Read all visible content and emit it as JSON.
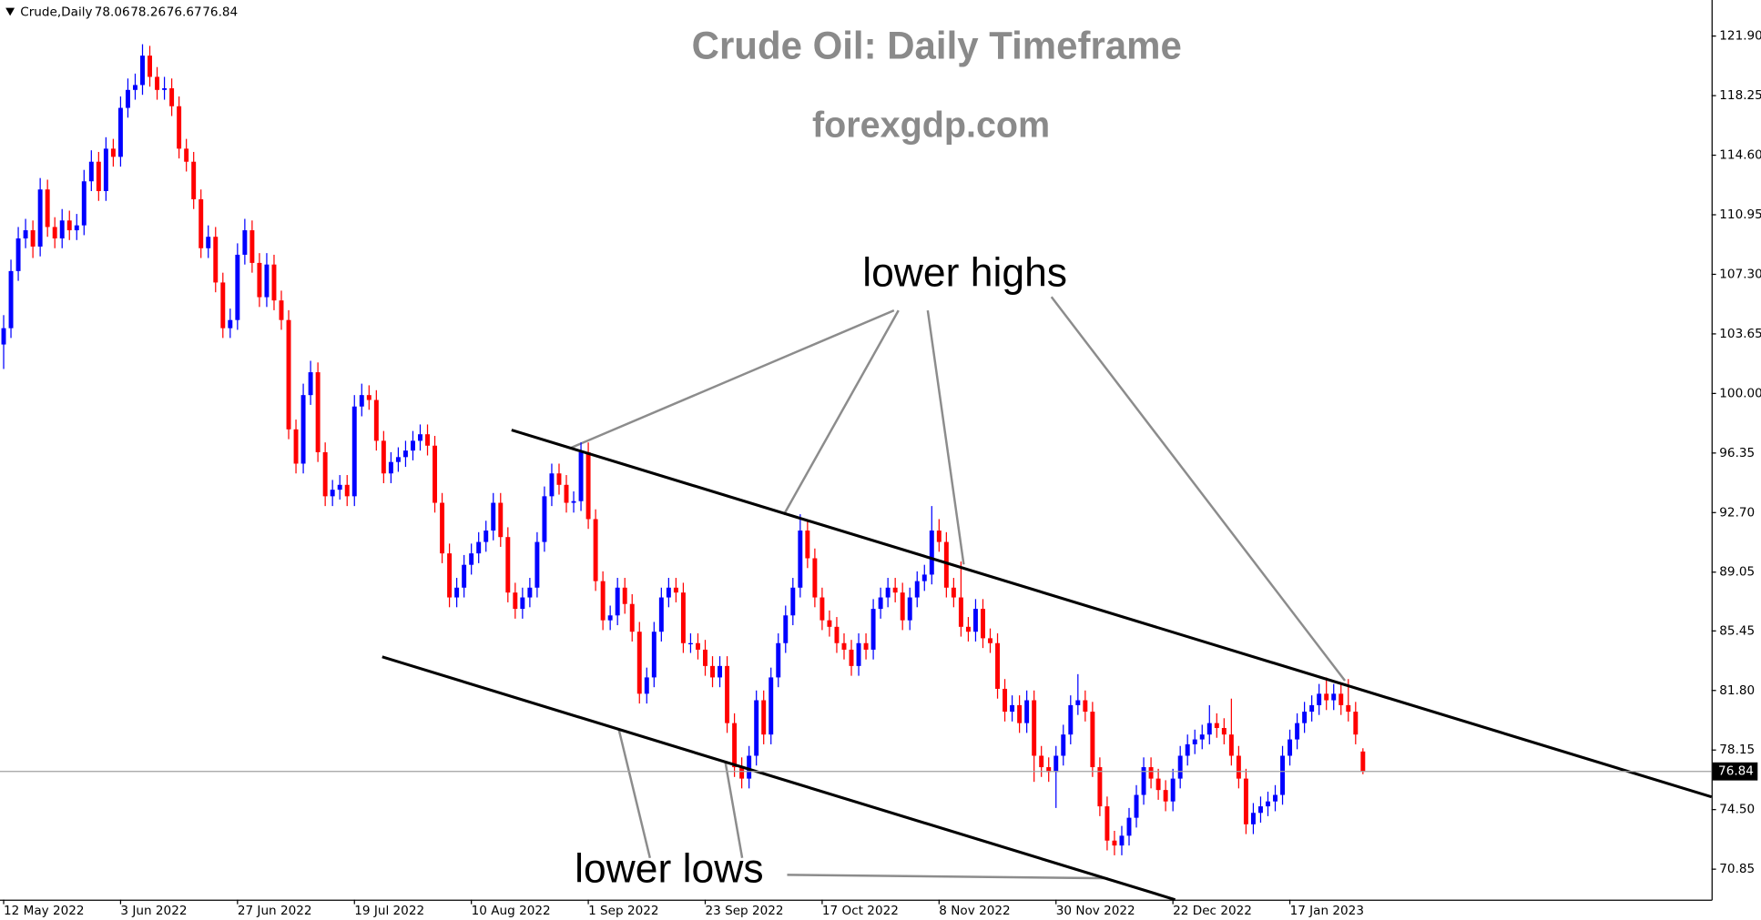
{
  "chart_data": {
    "type": "candlestick",
    "symbol": "Crude,Daily",
    "title": "Crude Oil: Daily Timeframe",
    "subtitle": "forexgdp.com",
    "annotations": [
      "lower highs",
      "lower lows"
    ],
    "up_color": "#0000ff",
    "down_color": "#ff0000",
    "price_line_color": "#a0a0a0",
    "ylim": [
      68.98,
      124.11
    ],
    "yticks": [
      {
        "value": 121.9,
        "label": "121.90"
      },
      {
        "value": 118.25,
        "label": "118.25"
      },
      {
        "value": 114.6,
        "label": "114.60"
      },
      {
        "value": 110.95,
        "label": "110.95"
      },
      {
        "value": 107.3,
        "label": "107.30"
      },
      {
        "value": 103.65,
        "label": "103.65"
      },
      {
        "value": 100,
        "label": "100.00"
      },
      {
        "value": 96.35,
        "label": "96.35"
      },
      {
        "value": 92.7,
        "label": "92.70"
      },
      {
        "value": 89.05,
        "label": "89.05"
      },
      {
        "value": 85.45,
        "label": "85.45"
      },
      {
        "value": 81.8,
        "label": "81.80"
      },
      {
        "value": 78.15,
        "label": "78.15"
      },
      {
        "value": 74.5,
        "label": "74.50"
      },
      {
        "value": 70.85,
        "label": "70.85"
      }
    ],
    "xlim": [
      -0.5,
      233.7
    ],
    "categories": [
      "12 May 2022",
      null,
      null,
      null,
      null,
      null,
      null,
      null,
      null,
      null,
      null,
      null,
      null,
      null,
      null,
      null,
      "3 Jun 2022",
      null,
      null,
      null,
      null,
      null,
      null,
      null,
      null,
      null,
      null,
      null,
      null,
      null,
      null,
      null,
      "27 Jun 2022",
      null,
      null,
      null,
      null,
      null,
      null,
      null,
      null,
      null,
      null,
      null,
      null,
      null,
      null,
      null,
      "19 Jul 2022",
      null,
      null,
      null,
      null,
      null,
      null,
      null,
      null,
      null,
      null,
      null,
      null,
      null,
      null,
      null,
      "10 Aug 2022",
      null,
      null,
      null,
      null,
      null,
      null,
      null,
      null,
      null,
      null,
      null,
      null,
      null,
      null,
      null,
      "1 Sep 2022",
      null,
      null,
      null,
      null,
      null,
      null,
      null,
      null,
      null,
      null,
      null,
      null,
      null,
      null,
      null,
      "23 Sep 2022",
      null,
      null,
      null,
      null,
      null,
      null,
      null,
      null,
      null,
      null,
      null,
      null,
      null,
      null,
      null,
      "17 Oct 2022",
      null,
      null,
      null,
      null,
      null,
      null,
      null,
      null,
      null,
      null,
      null,
      null,
      null,
      null,
      null,
      "8 Nov 2022",
      null,
      null,
      null,
      null,
      null,
      null,
      null,
      null,
      null,
      null,
      null,
      null,
      null,
      null,
      null,
      "30 Nov 2022",
      null,
      null,
      null,
      null,
      null,
      null,
      null,
      null,
      null,
      null,
      null,
      null,
      null,
      null,
      null,
      "22 Dec 2022",
      null,
      null,
      null,
      null,
      null,
      null,
      null,
      null,
      null,
      null,
      null,
      null,
      null,
      null,
      null,
      "17 Jan 2023",
      null,
      null,
      null,
      null,
      null,
      null,
      null,
      null,
      null,
      null
    ],
    "candles": [
      [
        103.0,
        104.8,
        101.5,
        104.0
      ],
      [
        104.0,
        108.2,
        103.4,
        107.5
      ],
      [
        107.5,
        110.2,
        106.9,
        109.5
      ],
      [
        109.5,
        110.7,
        108.9,
        110.0
      ],
      [
        110.0,
        110.6,
        108.3,
        109.0
      ],
      [
        109.0,
        113.2,
        108.4,
        112.5
      ],
      [
        112.5,
        113.1,
        109.6,
        110.2
      ],
      [
        110.2,
        110.8,
        108.9,
        109.5
      ],
      [
        109.5,
        111.3,
        108.9,
        110.6
      ],
      [
        110.6,
        111.2,
        109.4,
        110.0
      ],
      [
        110.0,
        111.0,
        109.4,
        110.3
      ],
      [
        110.3,
        113.7,
        109.7,
        113.0
      ],
      [
        113.0,
        114.9,
        112.4,
        114.2
      ],
      [
        114.2,
        114.8,
        111.8,
        112.4
      ],
      [
        112.4,
        115.7,
        111.8,
        115.0
      ],
      [
        115.0,
        115.6,
        113.9,
        114.5
      ],
      [
        114.5,
        118.2,
        113.9,
        117.5
      ],
      [
        117.5,
        119.3,
        116.9,
        118.6
      ],
      [
        118.6,
        119.6,
        118.0,
        118.9
      ],
      [
        118.9,
        121.4,
        118.3,
        120.7
      ],
      [
        120.7,
        121.3,
        118.8,
        119.4
      ],
      [
        119.4,
        120.0,
        118.0,
        118.6
      ],
      [
        118.6,
        119.4,
        118.0,
        118.7
      ],
      [
        118.7,
        119.3,
        117.0,
        117.6
      ],
      [
        117.6,
        118.2,
        114.4,
        115.0
      ],
      [
        115.0,
        115.6,
        113.6,
        114.2
      ],
      [
        114.2,
        114.8,
        111.3,
        111.9
      ],
      [
        111.9,
        112.5,
        108.3,
        108.9
      ],
      [
        108.9,
        110.3,
        108.3,
        109.6
      ],
      [
        109.6,
        110.2,
        106.2,
        106.8
      ],
      [
        106.8,
        107.4,
        103.4,
        104.0
      ],
      [
        104.0,
        105.2,
        103.4,
        104.5
      ],
      [
        104.5,
        109.2,
        103.9,
        108.5
      ],
      [
        108.5,
        110.7,
        107.9,
        110.0
      ],
      [
        110.0,
        110.6,
        107.4,
        108.0
      ],
      [
        108.0,
        108.6,
        105.3,
        105.9
      ],
      [
        105.9,
        108.6,
        105.3,
        107.9
      ],
      [
        107.9,
        108.5,
        105.1,
        105.7
      ],
      [
        105.7,
        106.3,
        103.9,
        104.5
      ],
      [
        104.5,
        105.1,
        97.2,
        97.8
      ],
      [
        97.8,
        98.4,
        95.1,
        95.7
      ],
      [
        95.7,
        100.6,
        95.1,
        99.9
      ],
      [
        99.9,
        102.0,
        99.3,
        101.3
      ],
      [
        101.3,
        101.9,
        95.8,
        96.4
      ],
      [
        96.4,
        97.0,
        93.1,
        93.7
      ],
      [
        93.7,
        94.7,
        93.1,
        94.1
      ],
      [
        94.1,
        95.0,
        93.5,
        94.4
      ],
      [
        94.4,
        95.0,
        93.1,
        93.7
      ],
      [
        93.7,
        99.9,
        93.1,
        99.2
      ],
      [
        99.2,
        100.6,
        98.6,
        99.9
      ],
      [
        99.9,
        100.5,
        99.0,
        99.6
      ],
      [
        99.6,
        100.2,
        96.5,
        97.1
      ],
      [
        97.1,
        97.7,
        94.5,
        95.1
      ],
      [
        95.1,
        96.4,
        94.5,
        95.8
      ],
      [
        95.8,
        96.7,
        95.2,
        96.1
      ],
      [
        96.1,
        97.1,
        95.5,
        96.5
      ],
      [
        96.5,
        97.7,
        95.9,
        97.1
      ],
      [
        97.1,
        98.1,
        96.5,
        97.5
      ],
      [
        97.5,
        98.1,
        96.2,
        96.8
      ],
      [
        96.8,
        97.4,
        92.7,
        93.3
      ],
      [
        93.3,
        93.9,
        89.6,
        90.2
      ],
      [
        90.2,
        90.8,
        86.9,
        87.5
      ],
      [
        87.5,
        88.7,
        86.9,
        88.1
      ],
      [
        88.1,
        90.1,
        87.5,
        89.5
      ],
      [
        89.5,
        90.8,
        88.9,
        90.2
      ],
      [
        90.2,
        91.5,
        89.6,
        90.9
      ],
      [
        90.9,
        92.2,
        90.3,
        91.6
      ],
      [
        91.6,
        93.9,
        91.0,
        93.3
      ],
      [
        93.3,
        93.9,
        90.6,
        91.2
      ],
      [
        91.2,
        91.8,
        87.2,
        87.8
      ],
      [
        87.8,
        88.4,
        86.2,
        86.8
      ],
      [
        86.8,
        88.1,
        86.2,
        87.5
      ],
      [
        87.5,
        88.7,
        86.9,
        88.1
      ],
      [
        88.1,
        91.5,
        87.5,
        90.9
      ],
      [
        90.9,
        94.3,
        90.3,
        93.7
      ],
      [
        93.7,
        95.7,
        93.1,
        95.1
      ],
      [
        95.1,
        95.7,
        93.8,
        94.4
      ],
      [
        94.4,
        95.0,
        92.7,
        93.3
      ],
      [
        93.3,
        94.0,
        92.7,
        93.4
      ],
      [
        93.4,
        97.0,
        92.8,
        96.4
      ],
      [
        96.4,
        97.0,
        91.7,
        92.3
      ],
      [
        92.3,
        92.9,
        87.9,
        88.5
      ],
      [
        88.5,
        89.1,
        85.5,
        86.1
      ],
      [
        86.1,
        87.0,
        85.5,
        86.4
      ],
      [
        86.4,
        88.7,
        85.8,
        88.1
      ],
      [
        88.1,
        88.7,
        86.5,
        87.1
      ],
      [
        87.1,
        87.7,
        84.8,
        85.4
      ],
      [
        85.4,
        86.0,
        81.0,
        81.6
      ],
      [
        81.6,
        83.2,
        81.0,
        82.6
      ],
      [
        82.6,
        86.0,
        82.0,
        85.4
      ],
      [
        85.4,
        88.1,
        84.8,
        87.5
      ],
      [
        87.5,
        88.7,
        86.9,
        88.1
      ],
      [
        88.1,
        88.7,
        87.2,
        87.8
      ],
      [
        87.8,
        88.4,
        84.1,
        84.7
      ],
      [
        84.7,
        85.3,
        84.1,
        84.7
      ],
      [
        84.7,
        85.3,
        83.7,
        84.3
      ],
      [
        84.3,
        84.9,
        82.7,
        83.3
      ],
      [
        83.3,
        83.9,
        82.0,
        82.6
      ],
      [
        82.6,
        83.9,
        82.0,
        83.3
      ],
      [
        83.3,
        83.9,
        79.2,
        79.8
      ],
      [
        79.8,
        80.4,
        76.5,
        77.1
      ],
      [
        77.1,
        77.7,
        75.8,
        76.4
      ],
      [
        76.4,
        78.4,
        75.8,
        77.8
      ],
      [
        77.8,
        81.8,
        77.2,
        81.2
      ],
      [
        81.2,
        81.8,
        78.5,
        79.1
      ],
      [
        79.1,
        83.2,
        78.5,
        82.6
      ],
      [
        82.6,
        85.3,
        82.0,
        84.7
      ],
      [
        84.7,
        87.0,
        84.1,
        86.4
      ],
      [
        86.4,
        88.7,
        85.8,
        88.1
      ],
      [
        88.1,
        92.6,
        87.5,
        91.6
      ],
      [
        91.6,
        92.2,
        89.3,
        89.9
      ],
      [
        89.9,
        90.5,
        86.9,
        87.5
      ],
      [
        87.5,
        88.1,
        85.5,
        86.1
      ],
      [
        86.1,
        86.7,
        85.1,
        85.7
      ],
      [
        85.7,
        86.3,
        84.1,
        84.7
      ],
      [
        84.7,
        85.3,
        83.7,
        84.3
      ],
      [
        84.3,
        84.9,
        82.7,
        83.3
      ],
      [
        83.3,
        85.3,
        82.7,
        84.7
      ],
      [
        84.7,
        85.3,
        83.7,
        84.3
      ],
      [
        84.3,
        87.4,
        83.7,
        86.8
      ],
      [
        86.8,
        88.1,
        86.2,
        87.5
      ],
      [
        87.5,
        88.7,
        86.9,
        88.1
      ],
      [
        88.1,
        88.7,
        87.2,
        87.8
      ],
      [
        87.8,
        88.4,
        85.5,
        86.1
      ],
      [
        86.1,
        88.1,
        85.5,
        87.5
      ],
      [
        87.5,
        89.1,
        86.9,
        88.5
      ],
      [
        88.5,
        89.5,
        87.9,
        88.9
      ],
      [
        88.9,
        93.1,
        88.3,
        91.6
      ],
      [
        91.6,
        92.3,
        90.3,
        90.9
      ],
      [
        90.9,
        91.5,
        87.5,
        88.1
      ],
      [
        88.1,
        88.7,
        86.9,
        87.5
      ],
      [
        87.5,
        89.7,
        85.1,
        85.7
      ],
      [
        85.7,
        86.3,
        84.8,
        85.4
      ],
      [
        85.4,
        87.4,
        84.8,
        86.8
      ],
      [
        86.8,
        87.4,
        84.4,
        85.0
      ],
      [
        85.0,
        85.6,
        84.1,
        84.7
      ],
      [
        84.7,
        85.3,
        81.3,
        81.9
      ],
      [
        81.9,
        82.5,
        79.9,
        80.5
      ],
      [
        80.5,
        81.5,
        79.9,
        80.9
      ],
      [
        80.9,
        81.5,
        79.2,
        79.8
      ],
      [
        79.8,
        81.8,
        79.2,
        81.2
      ],
      [
        81.2,
        81.8,
        76.2,
        77.8
      ],
      [
        77.8,
        78.4,
        76.5,
        77.1
      ],
      [
        77.1,
        77.7,
        76.2,
        76.8
      ],
      [
        76.8,
        78.4,
        74.6,
        77.8
      ],
      [
        77.8,
        79.7,
        77.2,
        79.1
      ],
      [
        79.1,
        81.5,
        78.5,
        80.9
      ],
      [
        80.9,
        82.8,
        80.3,
        81.2
      ],
      [
        81.2,
        81.8,
        79.9,
        80.5
      ],
      [
        80.5,
        81.1,
        76.5,
        77.1
      ],
      [
        77.1,
        77.7,
        74.1,
        74.7
      ],
      [
        74.7,
        75.3,
        72.0,
        72.6
      ],
      [
        72.6,
        73.2,
        71.7,
        72.3
      ],
      [
        72.3,
        73.5,
        71.7,
        72.9
      ],
      [
        72.9,
        74.6,
        72.3,
        74.0
      ],
      [
        74.0,
        76.0,
        73.4,
        75.4
      ],
      [
        75.4,
        77.7,
        74.8,
        77.1
      ],
      [
        77.1,
        77.7,
        75.8,
        76.4
      ],
      [
        76.4,
        77.0,
        75.1,
        75.7
      ],
      [
        75.7,
        76.3,
        74.4,
        75.0
      ],
      [
        75.0,
        77.0,
        74.4,
        76.4
      ],
      [
        76.4,
        78.4,
        75.8,
        77.8
      ],
      [
        77.8,
        79.1,
        77.2,
        78.5
      ],
      [
        78.5,
        79.4,
        77.9,
        78.8
      ],
      [
        78.8,
        79.7,
        78.2,
        79.1
      ],
      [
        79.1,
        80.9,
        78.5,
        79.8
      ],
      [
        79.8,
        80.4,
        78.9,
        79.5
      ],
      [
        79.5,
        80.1,
        78.5,
        79.1
      ],
      [
        79.1,
        81.3,
        77.2,
        77.8
      ],
      [
        77.8,
        78.4,
        75.8,
        76.4
      ],
      [
        76.4,
        77.0,
        73.0,
        73.6
      ],
      [
        73.6,
        74.9,
        73.0,
        74.3
      ],
      [
        74.3,
        75.3,
        73.7,
        74.7
      ],
      [
        74.7,
        75.6,
        74.1,
        75.0
      ],
      [
        75.0,
        76.0,
        74.4,
        75.4
      ],
      [
        75.4,
        78.4,
        74.8,
        77.8
      ],
      [
        77.8,
        79.4,
        77.2,
        78.8
      ],
      [
        78.8,
        80.4,
        78.2,
        79.8
      ],
      [
        79.8,
        81.1,
        79.2,
        80.5
      ],
      [
        80.5,
        81.5,
        79.9,
        80.9
      ],
      [
        80.9,
        82.2,
        80.3,
        81.6
      ],
      [
        81.6,
        82.6,
        80.6,
        81.2
      ],
      [
        81.2,
        82.2,
        80.6,
        81.6
      ],
      [
        81.6,
        82.2,
        80.3,
        80.9
      ],
      [
        80.9,
        82.5,
        79.9,
        80.5
      ],
      [
        80.5,
        81.1,
        78.5,
        79.1
      ],
      [
        78.06,
        78.26,
        76.67,
        76.84
      ]
    ],
    "trendlines": [
      [
        [
          69.5,
          97.76
        ],
        [
          233.7,
          75.28
        ]
      ],
      [
        [
          51.8,
          83.86
        ],
        [
          160.3,
          68.98
        ]
      ]
    ]
  }
}
